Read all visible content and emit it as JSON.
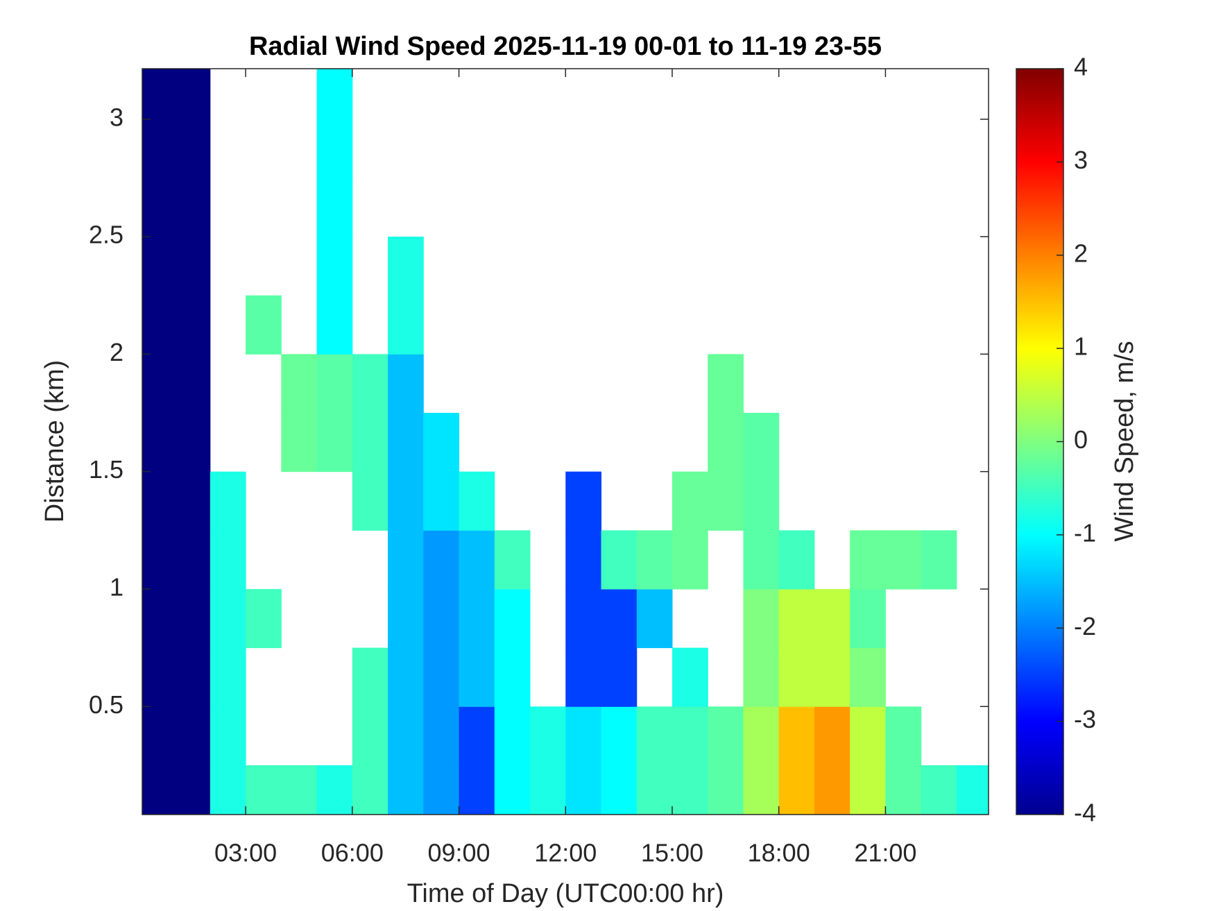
{
  "chart_data": {
    "type": "heatmap",
    "title": "Radial Wind Speed 2025-11-19 00-01 to 11-19 23-55",
    "x_label": "Time of Day (UTC00:00 hr)",
    "y_label": "Distance (km)",
    "colorbar_label": "Wind Speed, m/s",
    "colormap": "jet",
    "xlim": [
      0.09,
      23.9
    ],
    "ylim": [
      0.04,
      3.215
    ],
    "clim": [
      -4,
      4
    ],
    "xticks": [
      {
        "value": 3,
        "label": "03:00"
      },
      {
        "value": 6,
        "label": "06:00"
      },
      {
        "value": 9,
        "label": "09:00"
      },
      {
        "value": 12,
        "label": "12:00"
      },
      {
        "value": 15,
        "label": "15:00"
      },
      {
        "value": 18,
        "label": "18:00"
      },
      {
        "value": 21,
        "label": "21:00"
      }
    ],
    "yticks": [
      0.5,
      1,
      1.5,
      2,
      2.5,
      3
    ],
    "cticks": [
      -4,
      -3,
      -2,
      -1,
      0,
      1,
      2,
      3,
      4
    ],
    "x": [
      0.5,
      1.5,
      2.5,
      3.5,
      4.5,
      5.5,
      6.5,
      7.5,
      8.5,
      9.5,
      10.5,
      11.5,
      12.5,
      13.5,
      14.5,
      15.5,
      16.5,
      17.5,
      18.5,
      19.5,
      20.5,
      21.5,
      22.5,
      23.5
    ],
    "y": [
      0.125,
      0.375,
      0.625,
      0.875,
      1.125,
      1.375,
      1.625,
      1.875,
      2.125,
      2.375,
      2.625,
      2.875,
      3.125
    ],
    "z": [
      [
        -4,
        -4,
        -0.8,
        -0.5,
        -0.5,
        -0.8,
        -0.5,
        -1.5,
        -1.8,
        -2.5,
        -1,
        -0.8,
        -1.2,
        -1,
        -0.5,
        -0.5,
        -0.3,
        0.3,
        1.5,
        1.8,
        0.5,
        -0.3,
        -0.5,
        -0.8
      ],
      [
        -4,
        -4,
        -0.8,
        null,
        null,
        null,
        -0.5,
        -1.5,
        -1.8,
        -2.5,
        -1,
        -0.8,
        -1.2,
        -1,
        -0.5,
        -0.5,
        -0.3,
        0.3,
        1.5,
        1.8,
        0.5,
        -0.3,
        null,
        null
      ],
      [
        -4,
        -4,
        -0.8,
        null,
        null,
        null,
        -0.5,
        -1.5,
        -1.8,
        -1.5,
        -1,
        null,
        -2.5,
        -2.5,
        null,
        -0.8,
        null,
        0,
        0.5,
        0.5,
        0,
        null,
        null,
        null
      ],
      [
        -4,
        -4,
        -0.8,
        -0.5,
        null,
        null,
        null,
        -1.5,
        -1.8,
        -1.5,
        -1,
        null,
        -2.5,
        -2.5,
        -1.5,
        null,
        null,
        0,
        0.5,
        0.5,
        -0.3,
        null,
        null,
        null
      ],
      [
        -4,
        -4,
        -0.8,
        null,
        null,
        null,
        null,
        -1.5,
        -1.8,
        -1.5,
        -0.5,
        null,
        -2.5,
        -0.5,
        -0.3,
        -0.2,
        null,
        -0.3,
        -0.5,
        null,
        -0.2,
        -0.2,
        -0.3,
        null
      ],
      [
        -4,
        -4,
        -0.8,
        null,
        null,
        null,
        -0.5,
        -1.5,
        -1.2,
        -0.8,
        null,
        null,
        -2.5,
        null,
        null,
        -0.2,
        -0.2,
        -0.3,
        null,
        null,
        null,
        null,
        null,
        null
      ],
      [
        -4,
        -4,
        null,
        null,
        -0.2,
        -0.3,
        -0.5,
        -1.5,
        -1.2,
        null,
        null,
        null,
        null,
        null,
        null,
        null,
        -0.2,
        -0.3,
        null,
        null,
        null,
        null,
        null,
        null
      ],
      [
        -4,
        -4,
        null,
        null,
        -0.2,
        -0.3,
        -0.5,
        -1.5,
        null,
        null,
        null,
        null,
        null,
        null,
        null,
        null,
        -0.2,
        null,
        null,
        null,
        null,
        null,
        null,
        null
      ],
      [
        -4,
        -4,
        null,
        -0.3,
        null,
        -1,
        null,
        -0.8,
        null,
        null,
        null,
        null,
        null,
        null,
        null,
        null,
        null,
        null,
        null,
        null,
        null,
        null,
        null,
        null
      ],
      [
        -4,
        -4,
        null,
        null,
        null,
        -1,
        null,
        -0.8,
        null,
        null,
        null,
        null,
        null,
        null,
        null,
        null,
        null,
        null,
        null,
        null,
        null,
        null,
        null,
        null
      ],
      [
        -4,
        -4,
        null,
        null,
        null,
        -1,
        null,
        null,
        null,
        null,
        null,
        null,
        null,
        null,
        null,
        null,
        null,
        null,
        null,
        null,
        null,
        null,
        null,
        null
      ],
      [
        -4,
        -4,
        null,
        null,
        null,
        -1,
        null,
        null,
        null,
        null,
        null,
        null,
        null,
        null,
        null,
        null,
        null,
        null,
        null,
        null,
        null,
        null,
        null,
        null
      ],
      [
        -4,
        -4,
        null,
        null,
        null,
        -1,
        null,
        null,
        null,
        null,
        null,
        null,
        null,
        null,
        null,
        null,
        null,
        null,
        null,
        null,
        null,
        null,
        null,
        null
      ]
    ]
  }
}
